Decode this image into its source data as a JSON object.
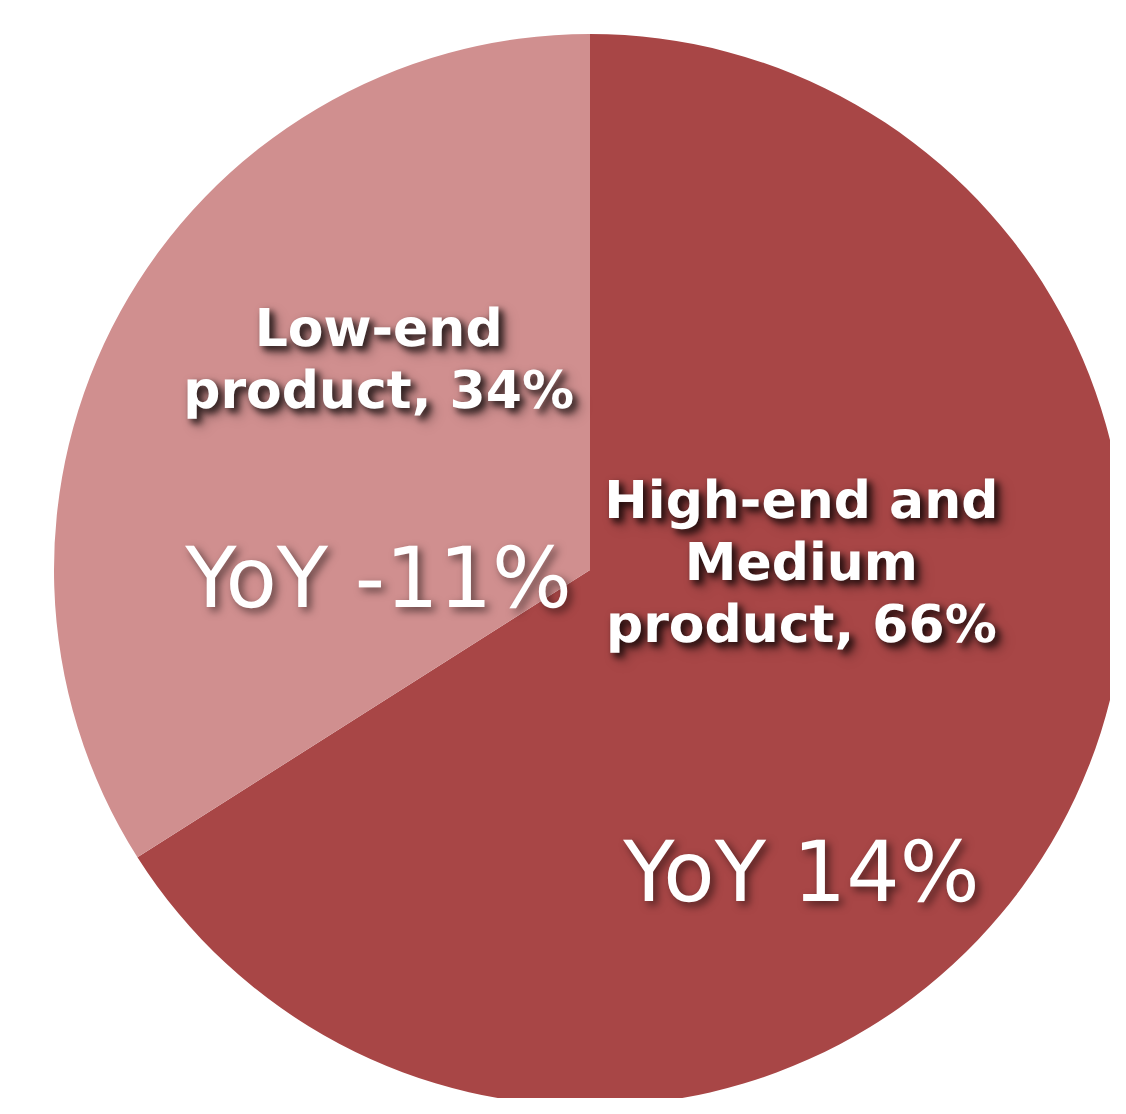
{
  "chart_data": {
    "type": "pie",
    "categories": [
      "High-end and Medium product",
      "Low-end product"
    ],
    "values": [
      66,
      34
    ],
    "value_labels": [
      "66%",
      "34%"
    ],
    "colors": [
      "#a84646",
      "#d08f8f"
    ],
    "annotations": [
      "YoY 14%",
      "YoY -11%"
    ]
  }
}
